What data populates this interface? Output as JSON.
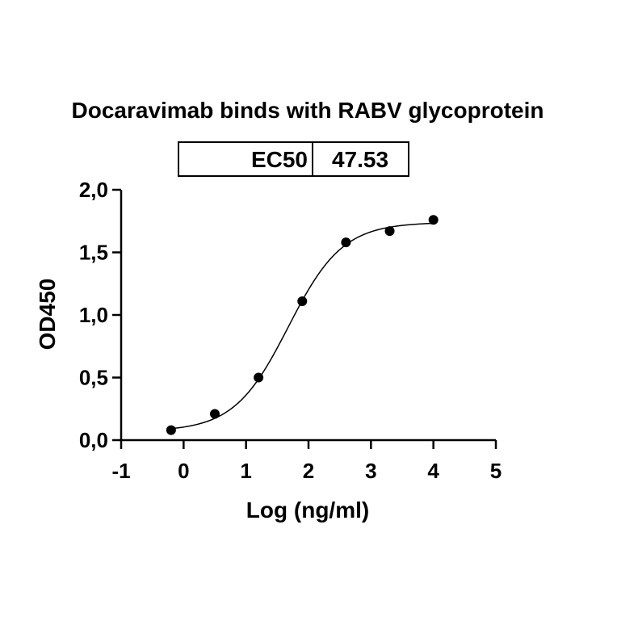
{
  "chart_data": {
    "type": "scatter",
    "title": "Docaravimab binds with RABV glycoprotein",
    "xlabel": "Log (ng/ml)",
    "ylabel": "OD450",
    "xlim": [
      -1,
      5
    ],
    "ylim": [
      0,
      2
    ],
    "x_ticks": [
      "-1",
      "0",
      "1",
      "2",
      "3",
      "4",
      "5"
    ],
    "y_ticks": [
      "0,0",
      "0,5",
      "1,0",
      "1,5",
      "2,0"
    ],
    "grid": false,
    "series": [
      {
        "points": [
          {
            "x": -0.2,
            "y": 0.08
          },
          {
            "x": 0.5,
            "y": 0.21
          },
          {
            "x": 1.2,
            "y": 0.5
          },
          {
            "x": 1.9,
            "y": 1.11
          },
          {
            "x": 2.6,
            "y": 1.58
          },
          {
            "x": 3.3,
            "y": 1.67
          },
          {
            "x": 4.0,
            "y": 1.76
          }
        ],
        "fit": {
          "model": "4PL",
          "bottom": 0.07,
          "top": 1.74,
          "logEC50": 1.677,
          "hill": 1.0
        }
      }
    ],
    "table": {
      "label": "EC50",
      "value": "47.53"
    }
  }
}
